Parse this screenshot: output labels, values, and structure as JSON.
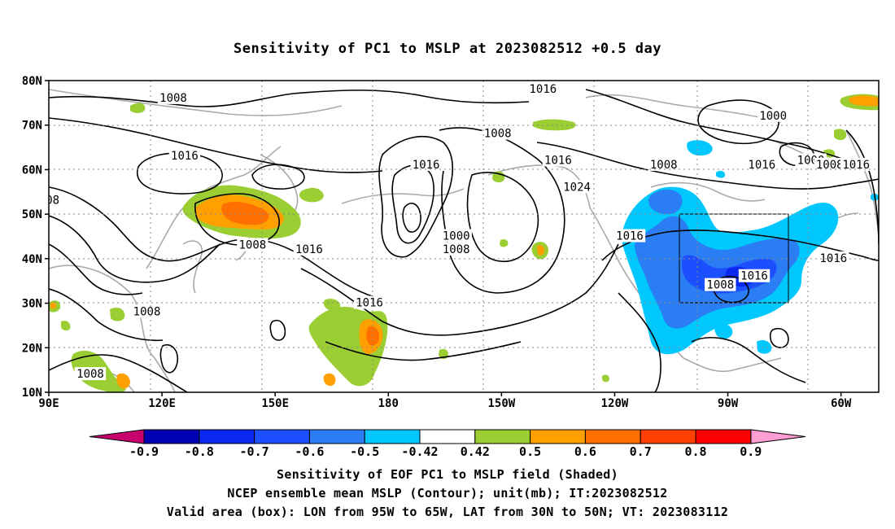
{
  "title": "Sensitivity of PC1 to MSLP at 2023082512 +0.5 day",
  "map": {
    "lat_ticks": [
      "80N",
      "70N",
      "60N",
      "50N",
      "40N",
      "30N",
      "20N",
      "10N"
    ],
    "lon_ticks": [
      "90E",
      "120E",
      "150E",
      "180",
      "150W",
      "120W",
      "90W",
      "60W"
    ],
    "lat_range": [
      10,
      80
    ],
    "lon_range_east": [
      90,
      310
    ],
    "gridlines": "dotted",
    "coastlines": "gray",
    "valid_box": {
      "lon": [
        "95W",
        "65W"
      ],
      "lat": [
        "30N",
        "50N"
      ]
    },
    "contour_labels": [
      {
        "text": "1008",
        "lon": 123,
        "lat": 76
      },
      {
        "text": "1016",
        "lon": 221,
        "lat": 78
      },
      {
        "text": "1008",
        "lon": 209,
        "lat": 68
      },
      {
        "text": "1016",
        "lon": 126,
        "lat": 63
      },
      {
        "text": "1016",
        "lon": 190,
        "lat": 61
      },
      {
        "text": "1016",
        "lon": 225,
        "lat": 62
      },
      {
        "text": "1024",
        "lon": 230,
        "lat": 56
      },
      {
        "text": "1008",
        "lon": 253,
        "lat": 61
      },
      {
        "text": "1000",
        "lon": 282,
        "lat": 72
      },
      {
        "text": "1000",
        "lon": 292,
        "lat": 62
      },
      {
        "text": "1008",
        "lon": 297,
        "lat": 61
      },
      {
        "text": "1016",
        "lon": 304,
        "lat": 61
      },
      {
        "text": "1016",
        "lon": 279,
        "lat": 61
      },
      {
        "text": "08",
        "lon": 91,
        "lat": 53
      },
      {
        "text": "1008",
        "lon": 144,
        "lat": 43
      },
      {
        "text": "1016",
        "lon": 159,
        "lat": 42
      },
      {
        "text": "1000",
        "lon": 198,
        "lat": 45
      },
      {
        "text": "1008",
        "lon": 198,
        "lat": 42
      },
      {
        "text": "1016",
        "lon": 244,
        "lat": 45
      },
      {
        "text": "1016",
        "lon": 277,
        "lat": 36
      },
      {
        "text": "1008",
        "lon": 268,
        "lat": 34
      },
      {
        "text": "1016",
        "lon": 298,
        "lat": 40
      },
      {
        "text": "1008",
        "lon": 116,
        "lat": 28
      },
      {
        "text": "1016",
        "lon": 175,
        "lat": 30
      },
      {
        "text": "1008",
        "lon": 101,
        "lat": 14
      }
    ]
  },
  "colorbar": {
    "labels": [
      "-0.9",
      "-0.8",
      "-0.7",
      "-0.6",
      "-0.5",
      "-0.42",
      "0.42",
      "0.5",
      "0.6",
      "0.7",
      "0.8",
      "0.9"
    ],
    "colors": [
      "#0000b4",
      "#0a28f0",
      "#1c50ff",
      "#2b7df4",
      "#00c8ff",
      "#ffffff",
      "#9ace32",
      "#ffa000",
      "#ff7000",
      "#ff4000",
      "#ff0000"
    ],
    "low_end_color": "#c8006e",
    "high_end_color": "#ff9ed2"
  },
  "captions": {
    "line1": "Sensitivity of EOF PC1 to MSLP field (Shaded)",
    "line2": "NCEP ensemble mean MSLP (Contour); unit(mb); IT:2023082512",
    "line3": "Valid area (box): LON from 95W to 65W, LAT from 30N to 50N; VT: 2023083112"
  }
}
